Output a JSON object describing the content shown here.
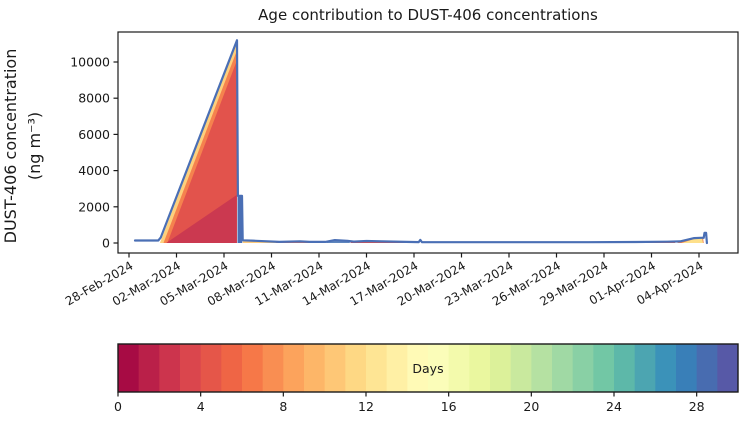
{
  "chart_data": {
    "type": "area",
    "title": "Age contribution to DUST-406 concentrations",
    "ylabel_line1": "DUST-406 concentration",
    "ylabel_line2": "(ng m⁻³)",
    "x_tick_labels": [
      "28-Feb-2024",
      "02-Mar-2024",
      "05-Mar-2024",
      "08-Mar-2024",
      "11-Mar-2024",
      "14-Mar-2024",
      "17-Mar-2024",
      "20-Mar-2024",
      "23-Mar-2024",
      "26-Mar-2024",
      "29-Mar-2024",
      "01-Apr-2024",
      "04-Apr-2024"
    ],
    "x_tick_interval_days": 3,
    "y_ticks": [
      0,
      2000,
      4000,
      6000,
      8000,
      10000
    ],
    "ylim": [
      0,
      11660
    ],
    "grid": false,
    "legend_position": "none",
    "line_color": "#4a6fb5",
    "peak_value": 11200,
    "peak_date": "05-Mar-2024",
    "line": [
      [
        0.38,
        140
      ],
      [
        1.85,
        140
      ],
      [
        2.0,
        300
      ],
      [
        6.82,
        11200
      ],
      [
        6.88,
        2600
      ],
      [
        7.14,
        2600
      ],
      [
        7.18,
        150
      ],
      [
        8.0,
        120
      ],
      [
        9.5,
        60
      ],
      [
        10.8,
        90
      ],
      [
        11.4,
        60
      ],
      [
        12.4,
        60
      ],
      [
        13.0,
        160
      ],
      [
        13.8,
        120
      ],
      [
        14.2,
        80
      ],
      [
        15.0,
        110
      ],
      [
        16.0,
        90
      ],
      [
        17.5,
        60
      ],
      [
        18.3,
        50
      ],
      [
        18.4,
        170
      ],
      [
        18.5,
        50
      ],
      [
        20,
        45
      ],
      [
        23,
        42
      ],
      [
        26,
        42
      ],
      [
        29,
        45
      ],
      [
        32,
        55
      ],
      [
        34,
        70
      ],
      [
        34.8,
        90
      ],
      [
        35.7,
        270
      ],
      [
        36.1,
        290
      ],
      [
        36.3,
        290
      ],
      [
        36.35,
        560
      ],
      [
        36.45,
        560
      ],
      [
        36.5,
        0
      ]
    ],
    "layers": [
      {
        "name": "triangle-yellow-edge",
        "color": "#fdd07c",
        "points": [
          [
            1.95,
            0
          ],
          [
            6.82,
            11200
          ],
          [
            6.82,
            0
          ]
        ]
      },
      {
        "name": "triangle-orange",
        "color": "#f5824e",
        "points": [
          [
            2.18,
            0
          ],
          [
            6.82,
            10650
          ],
          [
            6.82,
            0
          ]
        ]
      },
      {
        "name": "triangle-red",
        "color": "#e2534c",
        "points": [
          [
            2.42,
            0
          ],
          [
            6.82,
            10100
          ],
          [
            6.82,
            0
          ]
        ]
      },
      {
        "name": "triangle-dark-red",
        "color": "#cb3950",
        "points": [
          [
            2.35,
            0
          ],
          [
            6.8,
            2650
          ],
          [
            6.8,
            0
          ]
        ]
      },
      {
        "name": "step-column",
        "color": "#4a6fb5",
        "points": [
          [
            6.85,
            0
          ],
          [
            6.85,
            2600
          ],
          [
            7.15,
            2600
          ],
          [
            7.15,
            0
          ]
        ]
      },
      {
        "name": "band-yellow",
        "color": "#fdc979",
        "points": [
          [
            7.18,
            0
          ],
          [
            7.18,
            120
          ],
          [
            9.3,
            90
          ],
          [
            10.0,
            0
          ]
        ]
      },
      {
        "name": "band-orange",
        "color": "#ed6a4d",
        "points": [
          [
            9.3,
            0
          ],
          [
            9.3,
            85
          ],
          [
            11.4,
            50
          ],
          [
            11.4,
            0
          ]
        ]
      },
      {
        "name": "band-bump-blue",
        "color": "#5f86bd",
        "points": [
          [
            12.4,
            0
          ],
          [
            13.0,
            150
          ],
          [
            13.8,
            110
          ],
          [
            14.0,
            0
          ]
        ]
      },
      {
        "name": "band-red",
        "color": "#d74b4d",
        "points": [
          [
            14.0,
            0
          ],
          [
            14.0,
            100
          ],
          [
            15.0,
            100
          ],
          [
            17.8,
            50
          ],
          [
            17.8,
            0
          ]
        ]
      },
      {
        "name": "band-end-red",
        "color": "#e2624f",
        "points": [
          [
            27.5,
            0
          ],
          [
            28.0,
            35
          ],
          [
            34.5,
            45
          ],
          [
            34.5,
            0
          ]
        ]
      },
      {
        "name": "end-hill-orange",
        "color": "#f0794b",
        "points": [
          [
            34.6,
            0
          ],
          [
            35.7,
            280
          ],
          [
            36.25,
            300
          ],
          [
            36.3,
            0
          ]
        ]
      },
      {
        "name": "end-hill-yellow",
        "color": "#fee08b",
        "points": [
          [
            34.9,
            0
          ],
          [
            35.75,
            230
          ],
          [
            36.2,
            250
          ],
          [
            36.25,
            0
          ]
        ]
      }
    ],
    "colorbar": {
      "label": "Days",
      "vmin": 0,
      "vmax": 30,
      "n_segments": 30,
      "ticks": [
        0,
        4,
        8,
        12,
        16,
        20,
        24,
        28
      ],
      "colormap_name": "Spectral",
      "colors": [
        "#a70b44",
        "#ba2049",
        "#cc344d",
        "#da464d",
        "#e55649",
        "#ef6545",
        "#f67848",
        "#f98e52",
        "#fca35c",
        "#fdb668",
        "#fec776",
        "#fed884",
        "#fee594",
        "#fff0a5",
        "#fffab6",
        "#fbfdb9",
        "#f3faac",
        "#eaf79f",
        "#dcf19a",
        "#c9e99e",
        "#b5e1a2",
        "#a0d9a4",
        "#89d0a5",
        "#72c7a5",
        "#5db8a9",
        "#4ca5b1",
        "#3b92b9",
        "#397fb8",
        "#486cb0",
        "#5759a7"
      ]
    }
  }
}
